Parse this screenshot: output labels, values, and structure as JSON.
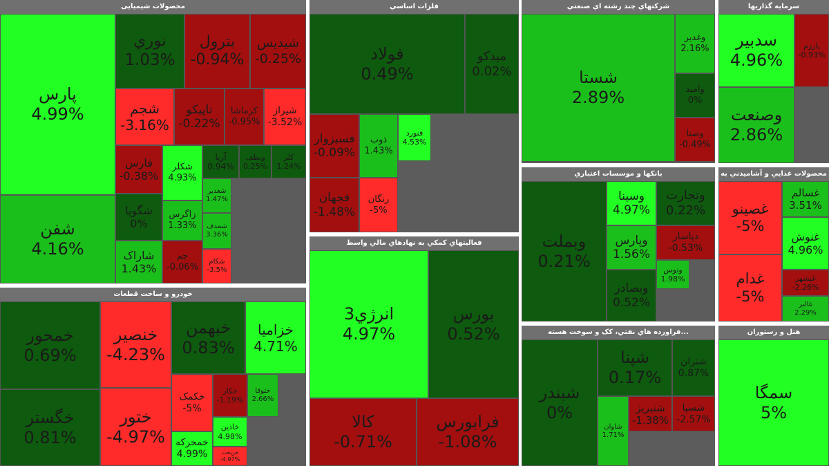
{
  "chart_data": {
    "type": "treemap",
    "color_scale": {
      "bright_green": "#22ff22",
      "green": "#1bbf1b",
      "dark_green": "#0e5a0e",
      "red": "#ff2a2a",
      "dark_red": "#a30f0f"
    },
    "sectors": [
      {
        "name": "محصولات شیمیایی",
        "cells": [
          {
            "symbol": "پارس",
            "change": "4.99%",
            "value": 4.99
          },
          {
            "symbol": "شفن",
            "change": "4.16%",
            "value": 4.16
          },
          {
            "symbol": "نوري",
            "change": "1.03%",
            "value": 1.03
          },
          {
            "symbol": "بترول",
            "change": "-0.94%",
            "value": -0.94
          },
          {
            "symbol": "شیدیس",
            "change": "-0.25%",
            "value": -0.25
          },
          {
            "symbol": "شجم",
            "change": "-3.16%",
            "value": -3.16
          },
          {
            "symbol": "تاپیکو",
            "change": "-0.22%",
            "value": -0.22
          },
          {
            "symbol": "کرماشا",
            "change": "-0.95%",
            "value": -0.95
          },
          {
            "symbol": "شیراز",
            "change": "-3.52%",
            "value": -3.52
          },
          {
            "symbol": "فارس",
            "change": "-0.38%",
            "value": -0.38
          },
          {
            "symbol": "شکلر",
            "change": "4.93%",
            "value": 4.93
          },
          {
            "symbol": "آریا",
            "change": "0.94%",
            "value": 0.94
          },
          {
            "symbol": "وبطف",
            "change": "0.25%",
            "value": 0.25
          },
          {
            "symbol": "کلر",
            "change": "1.24%",
            "value": 1.24
          },
          {
            "symbol": "شگویا",
            "change": "0%",
            "value": 0
          },
          {
            "symbol": "زاگرس",
            "change": "1.33%",
            "value": 1.33
          },
          {
            "symbol": "شغدیر",
            "change": "1.47%",
            "value": 1.47
          },
          {
            "symbol": "شمدف",
            "change": "3.36%",
            "value": 3.36
          },
          {
            "symbol": "شاراک",
            "change": "1.43%",
            "value": 1.43
          },
          {
            "symbol": "جم",
            "change": "-0.06%",
            "value": -0.06
          },
          {
            "symbol": "شکام",
            "change": "-3.5%",
            "value": -3.5
          }
        ]
      },
      {
        "name": "فلزات اساسي",
        "cells": [
          {
            "symbol": "فولاد",
            "change": "0.49%",
            "value": 0.49
          },
          {
            "symbol": "میدکو",
            "change": "0.02%",
            "value": 0.02
          },
          {
            "symbol": "فسبزوار",
            "change": "-0.09%",
            "value": -0.09
          },
          {
            "symbol": "ذوب",
            "change": "1.43%",
            "value": 1.43
          },
          {
            "symbol": "فنورد",
            "change": "4.53%",
            "value": 4.53
          },
          {
            "symbol": "فجهان",
            "change": "-1.48%",
            "value": -1.48
          },
          {
            "symbol": "رنگان",
            "change": "-5%",
            "value": -5
          }
        ]
      },
      {
        "name": "فعالیتهاي کمکي به نهادهاي مالي واسط",
        "cells": [
          {
            "symbol": "انرژي3",
            "change": "4.97%",
            "value": 4.97
          },
          {
            "symbol": "بورس",
            "change": "0.52%",
            "value": 0.52
          },
          {
            "symbol": "کالا",
            "change": "-0.71%",
            "value": -0.71
          },
          {
            "symbol": "فرابورس",
            "change": "-1.08%",
            "value": -1.08
          }
        ]
      },
      {
        "name": "شرکتهاي چند رشته اي صنعتي",
        "cells": [
          {
            "symbol": "شستا",
            "change": "2.89%",
            "value": 2.89
          },
          {
            "symbol": "وغدیر",
            "change": "2.16%",
            "value": 2.16
          },
          {
            "symbol": "واميد",
            "change": "0%",
            "value": 0
          },
          {
            "symbol": "وصنا",
            "change": "-0.49%",
            "value": -0.49
          }
        ]
      },
      {
        "name": "بانکها و موسسات اعتباري",
        "cells": [
          {
            "symbol": "وبملت",
            "change": "0.21%",
            "value": 0.21
          },
          {
            "symbol": "وسينا",
            "change": "4.97%",
            "value": 4.97
          },
          {
            "symbol": "وتجارت",
            "change": "0.22%",
            "value": 0.22
          },
          {
            "symbol": "وپارس",
            "change": "1.56%",
            "value": 1.56
          },
          {
            "symbol": "دپاسار",
            "change": "-0.53%",
            "value": -0.53
          },
          {
            "symbol": "وبصادر",
            "change": "0.52%",
            "value": 0.52
          },
          {
            "symbol": "وتوس",
            "change": "1.98%",
            "value": 1.98
          }
        ]
      },
      {
        "name": "سرمایه گذاریها",
        "cells": [
          {
            "symbol": "سدبیر",
            "change": "4.96%",
            "value": 4.96
          },
          {
            "symbol": "وصنعت",
            "change": "2.86%",
            "value": 2.86
          },
          {
            "symbol": "پارزم",
            "change": "-0.93%",
            "value": -0.93
          }
        ]
      },
      {
        "name": "محصولات غذايي و آشاميدني به",
        "cells": [
          {
            "symbol": "غصینو",
            "change": "-5%",
            "value": -5
          },
          {
            "symbol": "غسالم",
            "change": "3.51%",
            "value": 3.51
          },
          {
            "symbol": "غدام",
            "change": "-5%",
            "value": -5
          },
          {
            "symbol": "غنوش",
            "change": "4.96%",
            "value": 4.96
          },
          {
            "symbol": "غبشهر",
            "change": "-2.26%",
            "value": -2.26
          },
          {
            "symbol": "غالبر",
            "change": "2.29%",
            "value": 2.29
          }
        ]
      },
      {
        "name": "خودرو و ساخت قطعات",
        "cells": [
          {
            "symbol": "خمحور",
            "change": "0.69%",
            "value": 0.69
          },
          {
            "symbol": "خگستر",
            "change": "0.81%",
            "value": 0.81
          },
          {
            "symbol": "خنصیر",
            "change": "-4.23%",
            "value": -4.23
          },
          {
            "symbol": "ختور",
            "change": "-4.97%",
            "value": -4.97
          },
          {
            "symbol": "خبهمن",
            "change": "0.83%",
            "value": 0.83
          },
          {
            "symbol": "خزامیا",
            "change": "4.71%",
            "value": 4.71
          },
          {
            "symbol": "خکمک",
            "change": "-5%",
            "value": -5
          },
          {
            "symbol": "خکار",
            "change": "-1.19%",
            "value": -1.19
          },
          {
            "symbol": "ختوقا",
            "change": "2.66%",
            "value": 2.66
          },
          {
            "symbol": "خاذین",
            "change": "4.98%",
            "value": 4.98
          },
          {
            "symbol": "خمحرکه",
            "change": "4.99%",
            "value": 4.99
          },
          {
            "symbol": "خریخت",
            "change": "-4.97%",
            "value": -4.97
          }
        ]
      },
      {
        "name": "فراورده هاي نفتي، کک و سوخت هسته...",
        "cells": [
          {
            "symbol": "شبندر",
            "change": "0%",
            "value": 0
          },
          {
            "symbol": "شپنا",
            "change": "0.17%",
            "value": 0.17
          },
          {
            "symbol": "شتران",
            "change": "0.87%",
            "value": 0.87
          },
          {
            "symbol": "شاوان",
            "change": "1.71%",
            "value": 1.71
          },
          {
            "symbol": "شتبریز",
            "change": "-1.38%",
            "value": -1.38
          },
          {
            "symbol": "شسپا",
            "change": "-2.57%",
            "value": -2.57
          }
        ]
      },
      {
        "name": "هتل و رستوران",
        "cells": [
          {
            "symbol": "سمگا",
            "change": "5%",
            "value": 5
          }
        ]
      }
    ]
  }
}
